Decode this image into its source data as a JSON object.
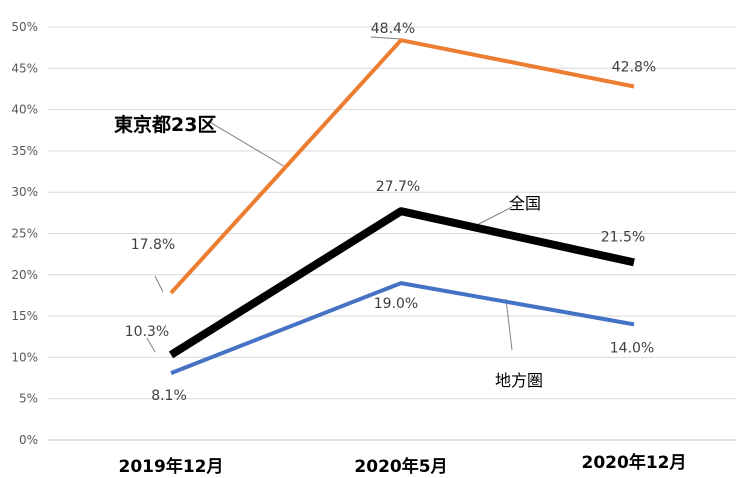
{
  "chart_data": {
    "type": "line",
    "categories": [
      "2019年12月",
      "2020年5月",
      "2020年12月"
    ],
    "series": [
      {
        "name": "東京都23区",
        "values": [
          17.8,
          48.4,
          42.8
        ],
        "labels": [
          "17.8%",
          "48.4%",
          "42.8%"
        ],
        "color": "#ED7D31"
      },
      {
        "name": "全国",
        "values": [
          10.3,
          27.7,
          21.5
        ],
        "labels": [
          "10.3%",
          "27.7%",
          "21.5%"
        ],
        "color": "#000000"
      },
      {
        "name": "地方圏",
        "values": [
          8.1,
          19.0,
          14.0
        ],
        "labels": [
          "8.1%",
          "19.0%",
          "14.0%"
        ],
        "color": "#4472C4"
      }
    ],
    "yticks": [
      "0%",
      "5%",
      "10%",
      "15%",
      "20%",
      "25%",
      "30%",
      "35%",
      "40%",
      "45%",
      "50%"
    ],
    "ylim": [
      0,
      50
    ],
    "grid": true,
    "legend": "none"
  }
}
